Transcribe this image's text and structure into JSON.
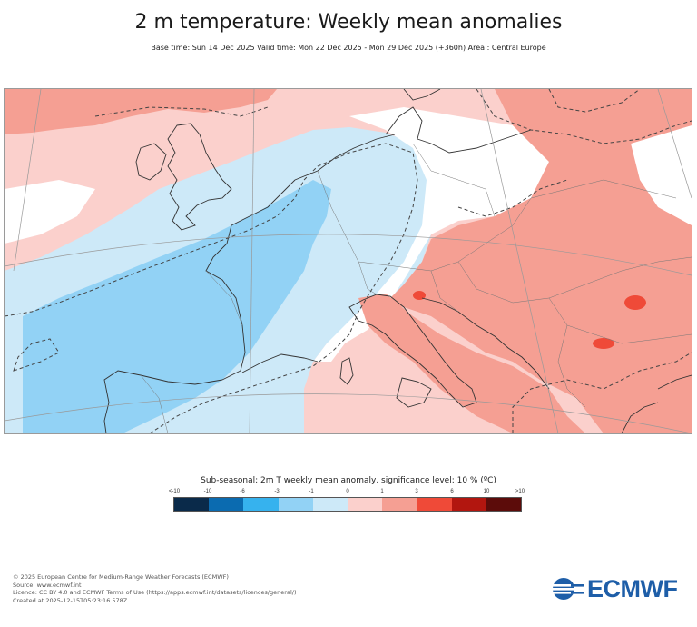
{
  "title": "2 m temperature: Weekly mean anomalies",
  "subtitle": "Base time: Sun 14 Dec 2025 Valid time: Mon 22 Dec 2025 - Mon 29 Dec 2025 (+360h) Area : Central Europe",
  "legend": {
    "title": "Sub-seasonal: 2m T weekly mean anomaly, significance level: 10 % (ºC)",
    "ticks": [
      "<-10",
      "-10",
      "-6",
      "-3",
      "-1",
      "0",
      "1",
      "3",
      "6",
      "10",
      ">10"
    ],
    "colors": [
      "#0a2a4a",
      "#0b6bb0",
      "#36b2ee",
      "#92d2f5",
      "#cde9f8",
      "#ffffff",
      "#fbd0cc",
      "#f59f93",
      "#ef4a38",
      "#b2160f",
      "#5c0c0a"
    ]
  },
  "map": {
    "area": "Central Europe",
    "colors": {
      "sea_cold": "#cde9f8",
      "cold": "#92d2f5",
      "warm_light": "#fbd0cc",
      "warm": "#f59f93",
      "hot": "#ef4a38"
    }
  },
  "footer": {
    "copyright": "© 2025 European Centre for Medium-Range Weather Forecasts (ECMWF)",
    "source": "Source: www.ecmwf.int",
    "licence": "Licence: CC BY 4.0 and ECMWF Terms of Use (https://apps.ecmwf.int/datasets/licences/general/)",
    "created": "Created at 2025-12-15T05:23:16.578Z"
  },
  "logo": {
    "text": "ECMWF",
    "icon": "ecmwf-logo-icon"
  }
}
